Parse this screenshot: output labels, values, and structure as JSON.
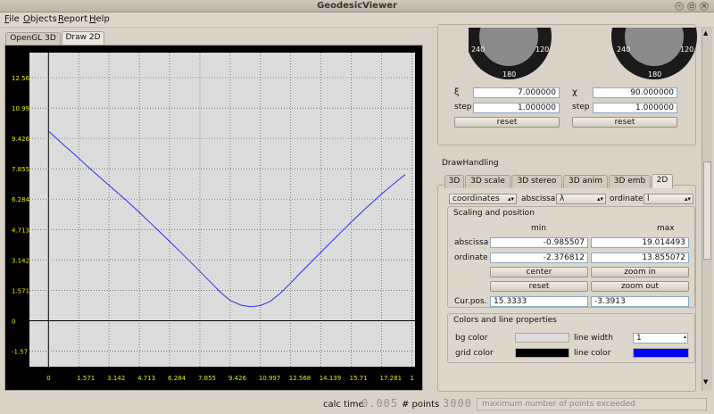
{
  "window": {
    "title": "GeodesicViewer"
  },
  "menu": [
    {
      "label": "File",
      "u": "F",
      "rest": "ile"
    },
    {
      "label": "Objects",
      "u": "O",
      "rest": "bjects"
    },
    {
      "label": "Report",
      "u": "R",
      "rest": "eport"
    },
    {
      "label": "Help",
      "u": "H",
      "rest": "elp"
    }
  ],
  "left_tabs": [
    "OpenGL 3D",
    "Draw 2D"
  ],
  "dials": {
    "left_labels": [
      "240",
      "120",
      "180"
    ],
    "right_labels": [
      "240",
      "120",
      "180"
    ]
  },
  "params": {
    "xi_label": "ξ",
    "xi_value": "7.000000",
    "chi_label": "χ",
    "chi_value": "90.000000",
    "step_label": "step",
    "step_left": "1.000000",
    "step_right": "1.000000",
    "reset_label": "reset"
  },
  "draw_handling": {
    "title": "DrawHandling",
    "tabs": [
      "3D",
      "3D scale",
      "3D stereo",
      "3D anim",
      "3D emb",
      "2D"
    ],
    "coord_select": "coordinates",
    "abscissa_label": "abscissa",
    "abscissa_value": "λ",
    "ordinate_label": "ordinate",
    "ordinate_value": "l",
    "scaling_title": "Scaling and position",
    "min_label": "min",
    "max_label": "max",
    "abscissa_min": "-0.985507",
    "abscissa_max": "19.014493",
    "ordinate_min": "-2.376812",
    "ordinate_max": "13.855072",
    "center_label": "center",
    "zoomin_label": "zoom in",
    "reset_label": "reset",
    "zoomout_label": "zoom out",
    "curpos_label": "Cur.pos.",
    "curpos_x": "15.3333",
    "curpos_y": "-3.3913",
    "colors_title": "Colors and line properties",
    "bg_color_label": "bg color",
    "line_width_label": "line width",
    "line_width": "1",
    "grid_color_label": "grid color",
    "line_color_label": "line color",
    "colors": {
      "bg": "#dcdcdc",
      "grid": "#000000",
      "line": "#0000ff"
    }
  },
  "status": {
    "calc_time_label": "calc time",
    "calc_time": "0.005",
    "points_label": "# points",
    "points": "3000",
    "message": "maximum number of points exceeded"
  },
  "chart_data": {
    "type": "line",
    "title": "",
    "xlabel": "",
    "ylabel": "",
    "xlim": [
      -0.985507,
      19.014493
    ],
    "ylim": [
      -2.376812,
      13.855072
    ],
    "x_ticks": [
      "0",
      "1.571",
      "3.142",
      "4.713",
      "6.284",
      "7.855",
      "9.426",
      "10.997",
      "12.568",
      "14.139",
      "15.71",
      "17.281",
      "1"
    ],
    "y_ticks": [
      "12.56",
      "10.99",
      "9.426",
      "7.855",
      "6.284",
      "4.713",
      "3.142",
      "1.571",
      "0",
      "-1.57"
    ],
    "grid": true,
    "series": [
      {
        "color": "#3030ee",
        "x": [
          0,
          0.5,
          1.0,
          1.571,
          2.0,
          3.142,
          4.0,
          4.713,
          5.5,
          6.284,
          7.0,
          7.855,
          8.5,
          9.0,
          9.426,
          10.0,
          10.5,
          10.997,
          11.5,
          12.0,
          12.568,
          13.0,
          14.139,
          15.0,
          15.71,
          16.5,
          17.281,
          18.0,
          18.5
        ],
        "y": [
          9.8,
          9.35,
          8.9,
          8.4,
          8.0,
          7.0,
          6.25,
          5.6,
          4.85,
          4.1,
          3.4,
          2.55,
          1.9,
          1.4,
          1.05,
          0.8,
          0.72,
          0.78,
          1.0,
          1.4,
          1.95,
          2.4,
          3.55,
          4.4,
          5.1,
          5.85,
          6.55,
          7.15,
          7.55
        ]
      }
    ]
  }
}
